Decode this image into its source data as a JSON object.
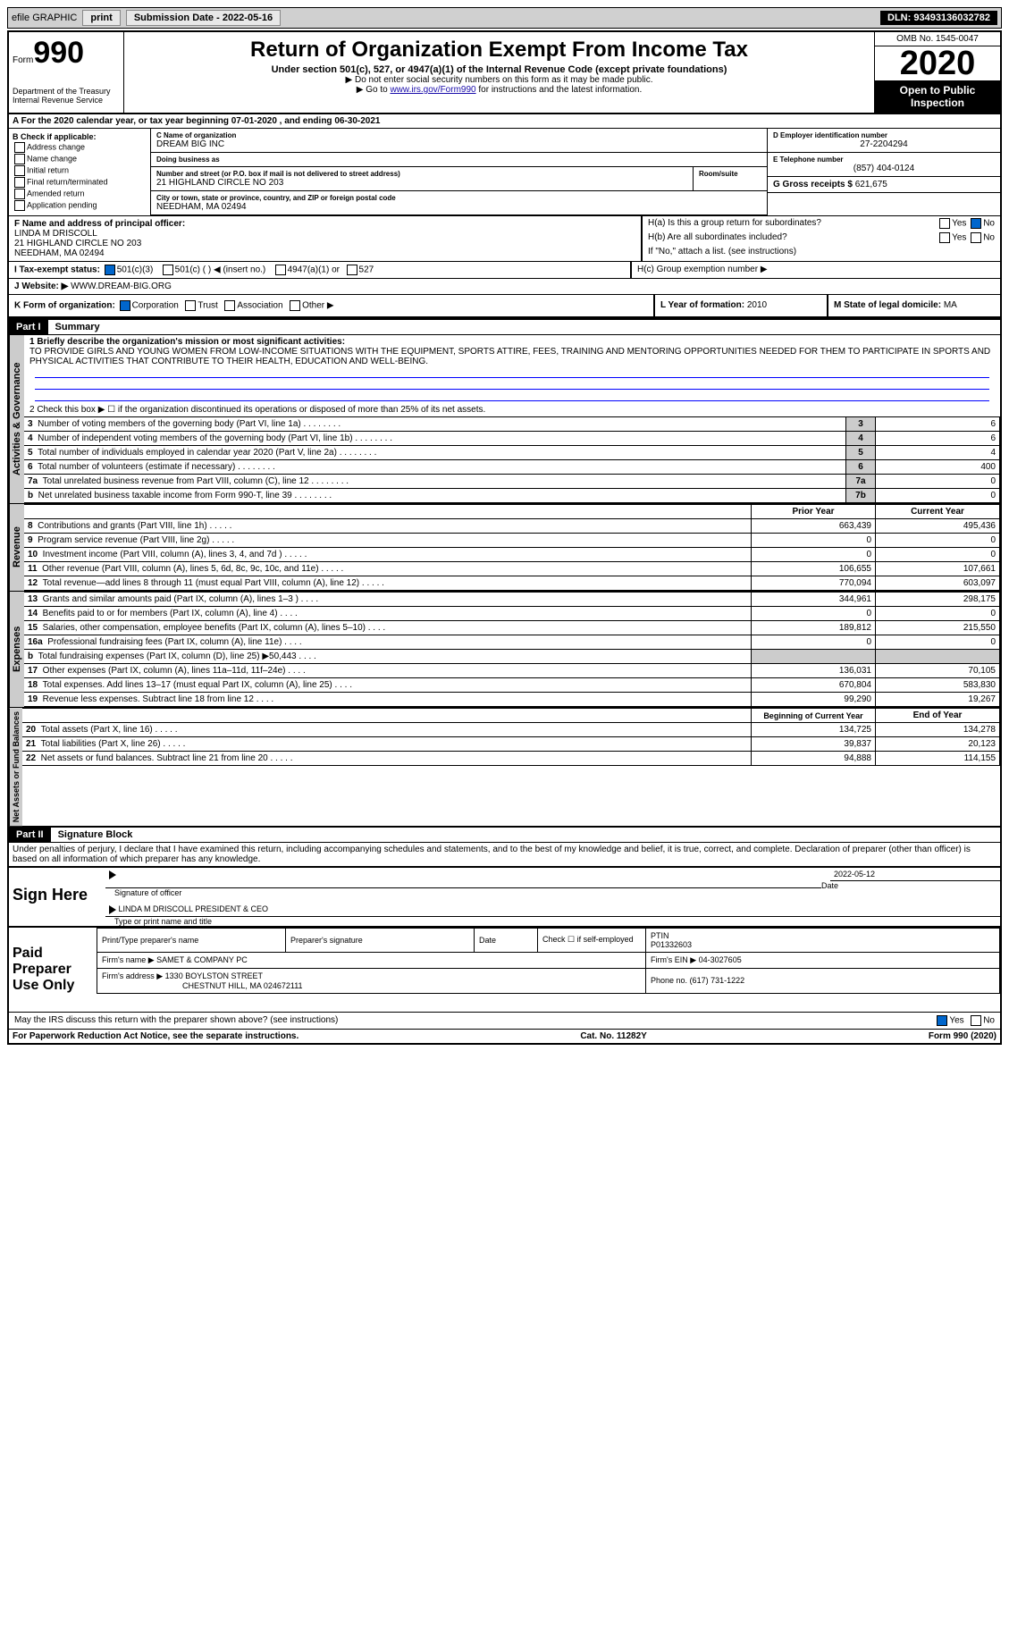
{
  "topbar": {
    "efile": "efile GRAPHIC",
    "print": "print",
    "submission": "Submission Date - 2022-05-16",
    "dln": "DLN: 93493136032782"
  },
  "header": {
    "form_label": "Form",
    "form_no": "990",
    "dept": "Department of the Treasury\nInternal Revenue Service",
    "title": "Return of Organization Exempt From Income Tax",
    "subtitle": "Under section 501(c), 527, or 4947(a)(1) of the Internal Revenue Code (except private foundations)",
    "note1": "▶ Do not enter social security numbers on this form as it may be made public.",
    "note2_pre": "▶ Go to ",
    "note2_link": "www.irs.gov/Form990",
    "note2_post": " for instructions and the latest information.",
    "omb": "OMB No. 1545-0047",
    "year": "2020",
    "open": "Open to Public Inspection"
  },
  "period": "A For the 2020 calendar year, or tax year beginning 07-01-2020    , and ending 06-30-2021",
  "section_b": {
    "title": "B Check if applicable:",
    "opts": [
      "Address change",
      "Name change",
      "Initial return",
      "Final return/terminated",
      "Amended return",
      "Application pending"
    ]
  },
  "section_c": {
    "name_lab": "C Name of organization",
    "name": "DREAM BIG INC",
    "dba_lab": "Doing business as",
    "dba": "",
    "addr_lab": "Number and street (or P.O. box if mail is not delivered to street address)",
    "addr": "21 HIGHLAND CIRCLE NO 203",
    "room_lab": "Room/suite",
    "city_lab": "City or town, state or province, country, and ZIP or foreign postal code",
    "city": "NEEDHAM, MA  02494"
  },
  "section_d": {
    "lab": "D Employer identification number",
    "val": "27-2204294"
  },
  "section_e": {
    "lab": "E Telephone number",
    "val": "(857) 404-0124"
  },
  "section_g": {
    "lab": "G Gross receipts $",
    "val": "621,675"
  },
  "section_f": {
    "lab": "F  Name and address of principal officer:",
    "name": "LINDA M DRISCOLL",
    "addr1": "21 HIGHLAND CIRCLE NO 203",
    "addr2": "NEEDHAM, MA  02494"
  },
  "section_h": {
    "ha": "H(a)  Is this a group return for subordinates?",
    "hb": "H(b)  Are all subordinates included?",
    "hb_note": "If \"No,\" attach a list. (see instructions)",
    "hc": "H(c)  Group exemption number ▶",
    "yes": "Yes",
    "no": "No"
  },
  "section_i": {
    "lab": "I  Tax-exempt status:",
    "opts": [
      "501(c)(3)",
      "501(c) (  ) ◀ (insert no.)",
      "4947(a)(1) or",
      "527"
    ]
  },
  "section_j": {
    "lab": "J  Website: ▶",
    "val": "WWW.DREAM-BIG.ORG"
  },
  "section_k": {
    "lab": "K Form of organization:",
    "opts": [
      "Corporation",
      "Trust",
      "Association",
      "Other ▶"
    ]
  },
  "section_l": {
    "lab": "L Year of formation:",
    "val": "2010"
  },
  "section_m": {
    "lab": "M State of legal domicile:",
    "val": "MA"
  },
  "part1": {
    "header": "Part I",
    "title": "Summary",
    "line1_lab": "1  Briefly describe the organization's mission or most significant activities:",
    "mission": "TO PROVIDE GIRLS AND YOUNG WOMEN FROM LOW-INCOME SITUATIONS WITH THE EQUIPMENT, SPORTS ATTIRE, FEES, TRAINING AND MENTORING OPPORTUNITIES NEEDED FOR THEM TO PARTICIPATE IN SPORTS AND PHYSICAL ACTIVITIES THAT CONTRIBUTE TO THEIR HEALTH, EDUCATION AND WELL-BEING.",
    "line2": "2   Check this box ▶ ☐ if the organization discontinued its operations or disposed of more than 25% of its net assets.",
    "gov_rows": [
      {
        "n": "3",
        "desc": "Number of voting members of the governing body (Part VI, line 1a)",
        "box": "3",
        "val": "6"
      },
      {
        "n": "4",
        "desc": "Number of independent voting members of the governing body (Part VI, line 1b)",
        "box": "4",
        "val": "6"
      },
      {
        "n": "5",
        "desc": "Total number of individuals employed in calendar year 2020 (Part V, line 2a)",
        "box": "5",
        "val": "4"
      },
      {
        "n": "6",
        "desc": "Total number of volunteers (estimate if necessary)",
        "box": "6",
        "val": "400"
      },
      {
        "n": "7a",
        "desc": "Total unrelated business revenue from Part VIII, column (C), line 12",
        "box": "7a",
        "val": "0"
      },
      {
        "n": "b",
        "desc": "Net unrelated business taxable income from Form 990-T, line 39",
        "box": "7b",
        "val": "0"
      }
    ],
    "col_headers": {
      "prior": "Prior Year",
      "current": "Current Year"
    },
    "revenue_rows": [
      {
        "n": "8",
        "desc": "Contributions and grants (Part VIII, line 1h)",
        "prior": "663,439",
        "cur": "495,436"
      },
      {
        "n": "9",
        "desc": "Program service revenue (Part VIII, line 2g)",
        "prior": "0",
        "cur": "0"
      },
      {
        "n": "10",
        "desc": "Investment income (Part VIII, column (A), lines 3, 4, and 7d )",
        "prior": "0",
        "cur": "0"
      },
      {
        "n": "11",
        "desc": "Other revenue (Part VIII, column (A), lines 5, 6d, 8c, 9c, 10c, and 11e)",
        "prior": "106,655",
        "cur": "107,661"
      },
      {
        "n": "12",
        "desc": "Total revenue—add lines 8 through 11 (must equal Part VIII, column (A), line 12)",
        "prior": "770,094",
        "cur": "603,097"
      }
    ],
    "expense_rows": [
      {
        "n": "13",
        "desc": "Grants and similar amounts paid (Part IX, column (A), lines 1–3 )",
        "prior": "344,961",
        "cur": "298,175"
      },
      {
        "n": "14",
        "desc": "Benefits paid to or for members (Part IX, column (A), line 4)",
        "prior": "0",
        "cur": "0"
      },
      {
        "n": "15",
        "desc": "Salaries, other compensation, employee benefits (Part IX, column (A), lines 5–10)",
        "prior": "189,812",
        "cur": "215,550"
      },
      {
        "n": "16a",
        "desc": "Professional fundraising fees (Part IX, column (A), line 11e)",
        "prior": "0",
        "cur": "0"
      },
      {
        "n": "b",
        "desc": "Total fundraising expenses (Part IX, column (D), line 25) ▶50,443",
        "prior": "",
        "cur": "",
        "gray": true
      },
      {
        "n": "17",
        "desc": "Other expenses (Part IX, column (A), lines 11a–11d, 11f–24e)",
        "prior": "136,031",
        "cur": "70,105"
      },
      {
        "n": "18",
        "desc": "Total expenses. Add lines 13–17 (must equal Part IX, column (A), line 25)",
        "prior": "670,804",
        "cur": "583,830"
      },
      {
        "n": "19",
        "desc": "Revenue less expenses. Subtract line 18 from line 12",
        "prior": "99,290",
        "cur": "19,267"
      }
    ],
    "net_headers": {
      "beg": "Beginning of Current Year",
      "end": "End of Year"
    },
    "net_rows": [
      {
        "n": "20",
        "desc": "Total assets (Part X, line 16)",
        "prior": "134,725",
        "cur": "134,278"
      },
      {
        "n": "21",
        "desc": "Total liabilities (Part X, line 26)",
        "prior": "39,837",
        "cur": "20,123"
      },
      {
        "n": "22",
        "desc": "Net assets or fund balances. Subtract line 21 from line 20",
        "prior": "94,888",
        "cur": "114,155"
      }
    ],
    "tabs": {
      "gov": "Activities & Governance",
      "rev": "Revenue",
      "exp": "Expenses",
      "net": "Net Assets or Fund Balances"
    }
  },
  "part2": {
    "header": "Part II",
    "title": "Signature Block",
    "penalty": "Under penalties of perjury, I declare that I have examined this return, including accompanying schedules and statements, and to the best of my knowledge and belief, it is true, correct, and complete. Declaration of preparer (other than officer) is based on all information of which preparer has any knowledge.",
    "sign_here": "Sign Here",
    "sig_officer": "Signature of officer",
    "sig_date": "2022-05-12",
    "date_lab": "Date",
    "officer_name": "LINDA M DRISCOLL PRESIDENT & CEO",
    "name_lab": "Type or print name and title",
    "paid": "Paid Preparer Use Only",
    "prep_name_lab": "Print/Type preparer's name",
    "prep_sig_lab": "Preparer's signature",
    "prep_date_lab": "Date",
    "self_emp": "Check ☐ if self-employed",
    "ptin_lab": "PTIN",
    "ptin": "P01332603",
    "firm_name_lab": "Firm's name    ▶",
    "firm_name": "SAMET & COMPANY PC",
    "firm_ein_lab": "Firm's EIN ▶",
    "firm_ein": "04-3027605",
    "firm_addr_lab": "Firm's address ▶",
    "firm_addr1": "1330 BOYLSTON STREET",
    "firm_addr2": "CHESTNUT HILL, MA  024672111",
    "phone_lab": "Phone no.",
    "phone": "(617) 731-1222",
    "discuss": "May the IRS discuss this return with the preparer shown above? (see instructions)",
    "yes": "Yes",
    "no": "No"
  },
  "footer": {
    "left": "For Paperwork Reduction Act Notice, see the separate instructions.",
    "mid": "Cat. No. 11282Y",
    "right": "Form 990 (2020)"
  }
}
